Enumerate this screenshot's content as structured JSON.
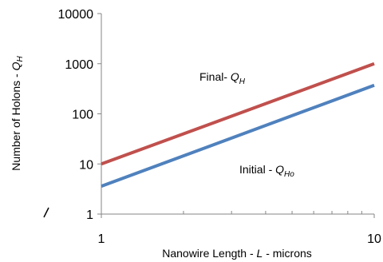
{
  "chart_data": {
    "type": "line",
    "title": "",
    "xlabel": {
      "prefix": "Nanowire Length - ",
      "italic": "L",
      "suffix": " - microns"
    },
    "ylabel": {
      "prefix": "Number of Holons - ",
      "italic": "Q",
      "sub": "H"
    },
    "x_scale": "log",
    "y_scale": "log",
    "xlim": [
      1,
      10
    ],
    "ylim": [
      1,
      10000
    ],
    "x_ticks": [
      1,
      10
    ],
    "x_tick_labels": [
      "1",
      "10"
    ],
    "y_ticks": [
      1,
      10,
      100,
      1000,
      10000
    ],
    "y_tick_labels": [
      "1",
      "10",
      "100",
      "1000",
      "10000"
    ],
    "grid": false,
    "legend": "none",
    "series": [
      {
        "name": "Final- QH",
        "x": [
          1,
          10
        ],
        "y": [
          10,
          1000
        ],
        "color": "#c0504d"
      },
      {
        "name": "Initial - QHo",
        "x": [
          1,
          10
        ],
        "y": [
          3.6,
          370
        ],
        "color": "#4f81bd"
      }
    ],
    "annotations": [
      {
        "id": "final",
        "prefix": "Final- ",
        "italic": "Q",
        "sub": "H"
      },
      {
        "id": "initial",
        "prefix": "Initial - ",
        "italic": "Q",
        "sub": "Ho"
      }
    ]
  }
}
